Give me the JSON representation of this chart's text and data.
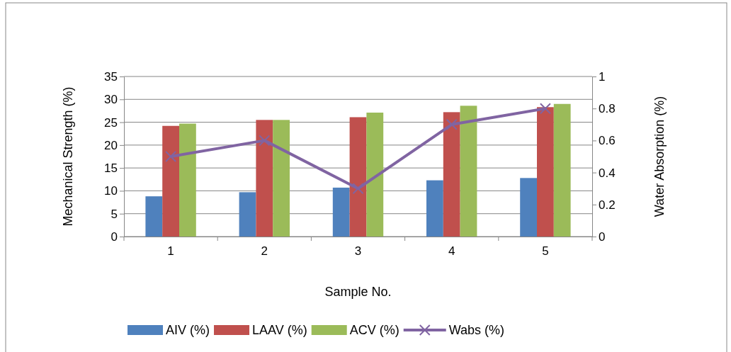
{
  "chart_data": {
    "type": "bar",
    "xlabel": "Sample No.",
    "ylabel": "Mechanical  Strength (%)",
    "y2label": "Water Absorption (%)",
    "categories": [
      "1",
      "2",
      "3",
      "4",
      "5"
    ],
    "series": [
      {
        "name": "AIV (%)",
        "color": "#4f81bd",
        "values": [
          8.8,
          9.7,
          10.7,
          12.3,
          12.8
        ]
      },
      {
        "name": "LAAV (%)",
        "color": "#c0504d",
        "values": [
          24.2,
          25.5,
          26.1,
          27.2,
          28.3
        ]
      },
      {
        "name": "ACV (%)",
        "color": "#9bbb59",
        "values": [
          24.7,
          25.5,
          27.1,
          28.6,
          29.0
        ]
      },
      {
        "name": "Wabs (%)",
        "type": "line",
        "axis": "y2",
        "color": "#8064a2",
        "marker": "cross",
        "values": [
          0.5,
          0.6,
          0.3,
          0.7,
          0.8
        ]
      }
    ],
    "ylim": [
      0,
      35
    ],
    "yticks": [
      0,
      5,
      10,
      15,
      20,
      25,
      30,
      35
    ],
    "y2lim": [
      0,
      1
    ],
    "y2ticks": [
      0,
      {
        "value": 0.2,
        "label": "0.2"
      },
      {
        "value": 0.4,
        "label": "0.4"
      },
      {
        "value": 0.6,
        "label": "0.6"
      },
      {
        "value": 0.8,
        "label": "0.8"
      },
      1
    ],
    "grid": "y",
    "legend": "bottom"
  }
}
